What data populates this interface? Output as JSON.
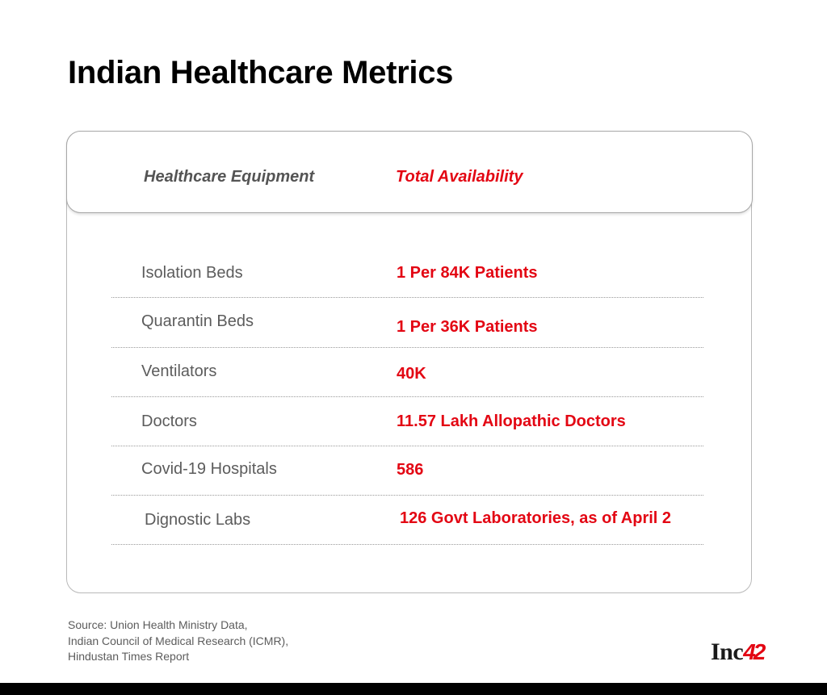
{
  "title": "Indian Healthcare Metrics",
  "table": {
    "header": {
      "equipment": "Healthcare Equipment",
      "availability": "Total Availability"
    },
    "rows": [
      {
        "label": "Isolation Beds",
        "value": "1 Per 84K Patients"
      },
      {
        "label": "Quarantin Beds",
        "value": "1 Per 36K Patients"
      },
      {
        "label": "Ventilators",
        "value": "40K"
      },
      {
        "label": "Doctors",
        "value": "11.57 Lakh Allopathic Doctors"
      },
      {
        "label": "Covid-19 Hospitals",
        "value": "586"
      },
      {
        "label": "Dignostic Labs",
        "value": "126 Govt Laboratories, as of April 2"
      }
    ]
  },
  "source": {
    "lines": [
      "Source:  Union Health Ministry Data,",
      "Indian Council of Medical Research (ICMR),",
      "Hindustan Times Report"
    ]
  },
  "brand": {
    "text": "Inc",
    "number": "42"
  },
  "colors": {
    "accent": "#e30613",
    "label_text": "#5c5c5c",
    "title_text": "#000000",
    "card_border": "#b9b9b9",
    "bottom_bar": "#000000"
  }
}
